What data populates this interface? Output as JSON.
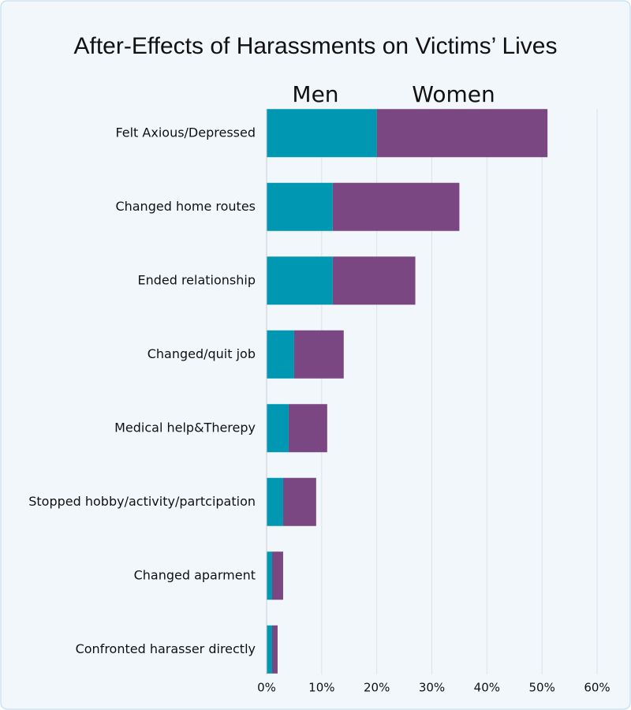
{
  "chart_data": {
    "type": "bar",
    "orientation": "horizontal",
    "stacked": true,
    "title": "After-Effects of Harassments on Victims’ Lives",
    "categories": [
      "Felt Axious/Depressed",
      "Changed home routes",
      "Ended relationship",
      "Changed/quit job",
      "Medical help&Therepy",
      "Stopped hobby/activity/partcipation",
      "Changed aparment",
      "Confronted harasser directly"
    ],
    "series": [
      {
        "name": "Men",
        "color": "#0097b2",
        "values": [
          20,
          12,
          12,
          5,
          4,
          3,
          1,
          1
        ]
      },
      {
        "name": "Women",
        "color": "#7a4782",
        "values": [
          31,
          23,
          15,
          9,
          7,
          6,
          2,
          1
        ]
      }
    ],
    "xlim": [
      0,
      60
    ],
    "xticks": [
      {
        "value": 0,
        "label": "0%"
      },
      {
        "value": 10,
        "label": "10%"
      },
      {
        "value": 20,
        "label": "20%"
      },
      {
        "value": 30,
        "label": "30%"
      },
      {
        "value": 40,
        "label": "40%"
      },
      {
        "value": 50,
        "label": "50%"
      },
      {
        "value": 60,
        "label": "60%"
      }
    ],
    "grid": true,
    "legend": "top"
  }
}
